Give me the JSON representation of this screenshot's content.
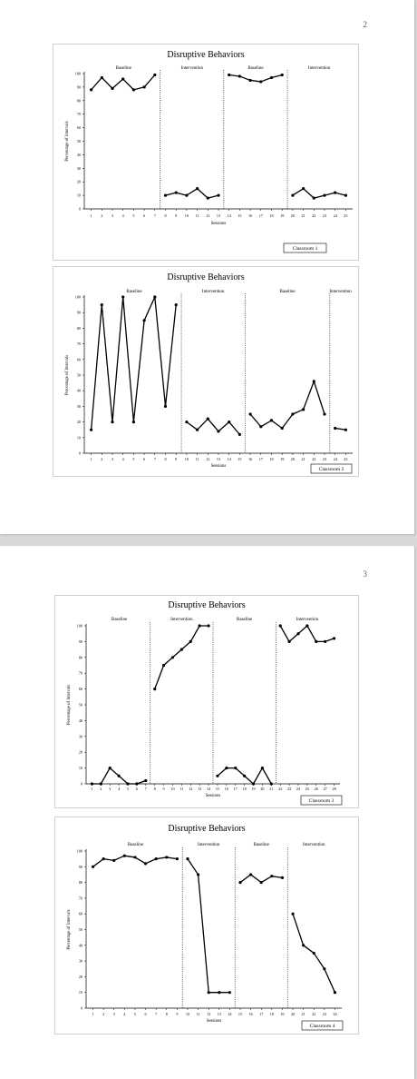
{
  "pages": [
    {
      "number": "2"
    },
    {
      "number": "3"
    }
  ],
  "chart_data": [
    {
      "type": "line",
      "title": "Disruptive Behaviors",
      "xlabel": "Sessions",
      "ylabel": "Percentage of Intervals",
      "ylim": [
        0,
        100
      ],
      "yticks": [
        0,
        10,
        20,
        30,
        40,
        50,
        60,
        70,
        80,
        90,
        100
      ],
      "xticks": [
        1,
        2,
        3,
        4,
        5,
        6,
        7,
        8,
        9,
        10,
        11,
        12,
        13,
        14,
        15,
        16,
        17,
        18,
        19,
        20,
        21,
        22,
        23,
        24,
        25
      ],
      "classroom_label": "Classroom 1",
      "phase_labels": [
        "Baseline",
        "Intervention",
        "Baseline",
        "Intervention"
      ],
      "phases": [
        {
          "name": "Baseline",
          "x": [
            1,
            2,
            3,
            4,
            5,
            6,
            7
          ],
          "y": [
            88,
            97,
            89,
            96,
            88,
            90,
            99
          ]
        },
        {
          "name": "Intervention",
          "x": [
            8,
            9,
            10,
            11,
            12,
            13
          ],
          "y": [
            10,
            12,
            10,
            15,
            8,
            10
          ]
        },
        {
          "name": "Baseline",
          "x": [
            14,
            15,
            16,
            17,
            18,
            19
          ],
          "y": [
            99,
            98,
            95,
            94,
            97,
            99
          ]
        },
        {
          "name": "Intervention",
          "x": [
            20,
            21,
            22,
            23,
            24,
            25
          ],
          "y": [
            10,
            15,
            8,
            10,
            12,
            10
          ]
        }
      ]
    },
    {
      "type": "line",
      "title": "Disruptive Behaviors",
      "xlabel": "Sessions",
      "ylabel": "Percentage of Intervals",
      "ylim": [
        0,
        100
      ],
      "yticks": [
        0,
        10,
        20,
        30,
        40,
        50,
        60,
        70,
        80,
        90,
        100
      ],
      "xticks": [
        1,
        2,
        3,
        4,
        5,
        6,
        7,
        8,
        9,
        10,
        11,
        12,
        13,
        14,
        15,
        16,
        17,
        18,
        19,
        20,
        21,
        22,
        23,
        24,
        25
      ],
      "classroom_label": "Classroom 2",
      "phase_labels": [
        "Baseline",
        "Intervention",
        "Baseline",
        "Intervention"
      ],
      "phases": [
        {
          "name": "Baseline",
          "x": [
            1,
            2,
            3,
            4,
            5,
            6,
            7,
            8,
            9
          ],
          "y": [
            15,
            95,
            20,
            100,
            20,
            85,
            100,
            30,
            95
          ]
        },
        {
          "name": "Intervention",
          "x": [
            10,
            11,
            12,
            13,
            14,
            15
          ],
          "y": [
            20,
            15,
            22,
            14,
            20,
            12
          ]
        },
        {
          "name": "Baseline",
          "x": [
            16,
            17,
            18,
            19,
            20,
            21,
            22,
            23
          ],
          "y": [
            25,
            17,
            21,
            16,
            25,
            28,
            46,
            25
          ]
        },
        {
          "name": "Intervention",
          "x": [
            24,
            25
          ],
          "y": [
            16,
            15
          ]
        }
      ]
    },
    {
      "type": "line",
      "title": "Disruptive Behaviors",
      "xlabel": "Sessions",
      "ylabel": "Percentage of Intervals",
      "ylim": [
        0,
        100
      ],
      "yticks": [
        0,
        10,
        20,
        30,
        40,
        50,
        60,
        70,
        80,
        90,
        100
      ],
      "xticks": [
        1,
        2,
        3,
        4,
        5,
        6,
        7,
        8,
        9,
        10,
        11,
        12,
        13,
        14,
        15,
        16,
        17,
        18,
        19,
        20,
        21,
        22,
        23,
        24,
        25,
        26,
        27,
        28
      ],
      "classroom_label": "Classroom 3",
      "phase_labels": [
        "Baseline",
        "Intervention",
        "Baseline",
        "Intervention"
      ],
      "phases": [
        {
          "name": "Baseline",
          "x": [
            1,
            2,
            3,
            4,
            5,
            6,
            7
          ],
          "y": [
            0,
            0,
            10,
            5,
            0,
            0,
            2
          ]
        },
        {
          "name": "Intervention",
          "x": [
            8,
            9,
            10,
            11,
            12,
            13,
            14
          ],
          "y": [
            60,
            75,
            80,
            85,
            90,
            100,
            100
          ]
        },
        {
          "name": "Baseline",
          "x": [
            15,
            16,
            17,
            18,
            19,
            20,
            21
          ],
          "y": [
            5,
            10,
            10,
            5,
            0,
            10,
            0
          ]
        },
        {
          "name": "Intervention",
          "x": [
            22,
            23,
            24,
            25,
            26,
            27,
            28
          ],
          "y": [
            100,
            90,
            95,
            100,
            90,
            90,
            92
          ]
        }
      ]
    },
    {
      "type": "line",
      "title": "Disruptive Behaviors",
      "xlabel": "Sessions",
      "ylabel": "Percentage of Intervals",
      "ylim": [
        0,
        100
      ],
      "yticks": [
        0,
        10,
        20,
        30,
        40,
        50,
        60,
        70,
        80,
        90,
        100
      ],
      "xticks": [
        1,
        2,
        3,
        4,
        5,
        6,
        7,
        8,
        9,
        10,
        11,
        12,
        13,
        14,
        15,
        16,
        17,
        18,
        19,
        20,
        21,
        22,
        23,
        24
      ],
      "classroom_label": "Classroom 4",
      "phase_labels": [
        "Baseline",
        "Intervention",
        "Baseline",
        "Intervention"
      ],
      "phases": [
        {
          "name": "Baseline",
          "x": [
            1,
            2,
            3,
            4,
            5,
            6,
            7,
            8,
            9
          ],
          "y": [
            90,
            95,
            94,
            97,
            96,
            92,
            95,
            96,
            95
          ]
        },
        {
          "name": "Intervention",
          "x": [
            10,
            11,
            12,
            13,
            14
          ],
          "y": [
            95,
            85,
            10,
            10,
            10
          ]
        },
        {
          "name": "Baseline",
          "x": [
            15,
            16,
            17,
            18,
            19
          ],
          "y": [
            80,
            85,
            80,
            84,
            83
          ]
        },
        {
          "name": "Intervention",
          "x": [
            20,
            21,
            22,
            23,
            24
          ],
          "y": [
            60,
            40,
            35,
            25,
            10
          ]
        }
      ]
    }
  ]
}
